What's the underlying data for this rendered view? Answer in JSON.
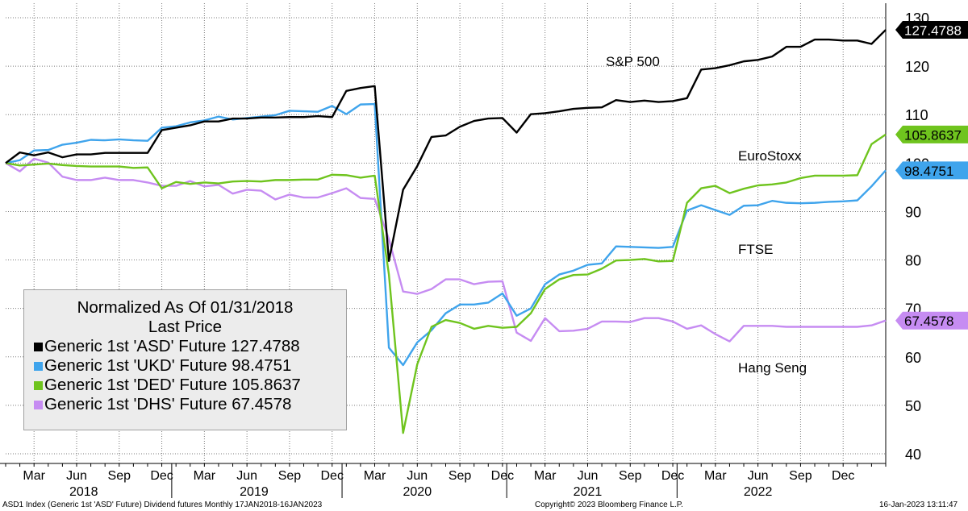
{
  "chart_data": {
    "type": "line",
    "legend": {
      "title_line1": "Normalized As Of 01/31/2018",
      "title_line2": "Last Price",
      "placement": "bottom-left"
    },
    "y_axis": {
      "min": 38,
      "max": 133,
      "ticks": [
        40,
        50,
        60,
        70,
        80,
        90,
        100,
        110,
        120,
        130
      ],
      "position": "right"
    },
    "x_axis": {
      "start": "2018-01",
      "end": "2023-01",
      "month_ticks": [
        {
          "label": "Mar",
          "t": 2
        },
        {
          "label": "Jun",
          "t": 5
        },
        {
          "label": "Sep",
          "t": 8
        },
        {
          "label": "Dec",
          "t": 11
        },
        {
          "label": "Mar",
          "t": 14
        },
        {
          "label": "Jun",
          "t": 17
        },
        {
          "label": "Sep",
          "t": 20
        },
        {
          "label": "Dec",
          "t": 23
        },
        {
          "label": "Mar",
          "t": 26
        },
        {
          "label": "Jun",
          "t": 29
        },
        {
          "label": "Sep",
          "t": 32
        },
        {
          "label": "Dec",
          "t": 35
        },
        {
          "label": "Mar",
          "t": 38
        },
        {
          "label": "Jun",
          "t": 41
        },
        {
          "label": "Sep",
          "t": 44
        },
        {
          "label": "Dec",
          "t": 47
        },
        {
          "label": "Mar",
          "t": 50
        },
        {
          "label": "Jun",
          "t": 53
        },
        {
          "label": "Sep",
          "t": 56
        },
        {
          "label": "Dec",
          "t": 59
        }
      ],
      "year_labels": [
        {
          "label": "2018",
          "t": 5.5
        },
        {
          "label": "2019",
          "t": 17.5
        },
        {
          "label": "2020",
          "t": 29.0
        },
        {
          "label": "2021",
          "t": 41.0
        },
        {
          "label": "2022",
          "t": 53.0
        }
      ],
      "year_separators": [
        11.7,
        23.7,
        35.3,
        47.3
      ]
    },
    "grid": true,
    "series": [
      {
        "legend_label": "Generic 1st 'ASD' Future 127.4788",
        "annotation": "S&P 500",
        "last_value": "127.4788",
        "color": "#000000",
        "points": [
          [
            0,
            100
          ],
          [
            1,
            102.2
          ],
          [
            2,
            101.6
          ],
          [
            3,
            102.2
          ],
          [
            4,
            101.2
          ],
          [
            5,
            101.8
          ],
          [
            6,
            101.8
          ],
          [
            7,
            102.1
          ],
          [
            8,
            102.1
          ],
          [
            9,
            102.1
          ],
          [
            10,
            102.1
          ],
          [
            11,
            106.8
          ],
          [
            12,
            107.3
          ],
          [
            13,
            107.8
          ],
          [
            14,
            108.6
          ],
          [
            15,
            108.6
          ],
          [
            16,
            109.2
          ],
          [
            17,
            109.2
          ],
          [
            18,
            109.4
          ],
          [
            19,
            109.4
          ],
          [
            20,
            109.5
          ],
          [
            21,
            109.5
          ],
          [
            22,
            109.7
          ],
          [
            23,
            109.5
          ],
          [
            24,
            114.9
          ],
          [
            25,
            115.5
          ],
          [
            26,
            115.9
          ],
          [
            27,
            79.8
          ],
          [
            28,
            94.5
          ],
          [
            29,
            99.4
          ],
          [
            30,
            105.4
          ],
          [
            31,
            105.7
          ],
          [
            32,
            107.5
          ],
          [
            33,
            108.7
          ],
          [
            34,
            109.2
          ],
          [
            35,
            109.3
          ],
          [
            36,
            106.3
          ],
          [
            37,
            110.1
          ],
          [
            38,
            110.3
          ],
          [
            39,
            110.7
          ],
          [
            40,
            111.2
          ],
          [
            41,
            111.4
          ],
          [
            42,
            111.5
          ],
          [
            43,
            113.0
          ],
          [
            44,
            112.6
          ],
          [
            45,
            112.9
          ],
          [
            46,
            112.6
          ],
          [
            47,
            112.8
          ],
          [
            48,
            113.4
          ],
          [
            49,
            119.3
          ],
          [
            50,
            119.6
          ],
          [
            51,
            120.2
          ],
          [
            52,
            121.0
          ],
          [
            53,
            121.3
          ],
          [
            54,
            122.0
          ],
          [
            55,
            124.0
          ],
          [
            56,
            124.0
          ],
          [
            57,
            125.5
          ],
          [
            58,
            125.5
          ],
          [
            59,
            125.3
          ],
          [
            60,
            125.3
          ],
          [
            61,
            124.6
          ],
          [
            62,
            127.5
          ]
        ]
      },
      {
        "legend_label": "Generic 1st 'UKD' Future 98.4751",
        "annotation": "FTSE",
        "last_value": "98.4751",
        "color": "#3fa4ec",
        "points": [
          [
            0,
            100
          ],
          [
            1,
            100.6
          ],
          [
            2,
            102.6
          ],
          [
            3,
            102.7
          ],
          [
            4,
            103.8
          ],
          [
            5,
            104.2
          ],
          [
            6,
            104.8
          ],
          [
            7,
            104.7
          ],
          [
            8,
            104.9
          ],
          [
            9,
            104.7
          ],
          [
            10,
            104.6
          ],
          [
            11,
            107.3
          ],
          [
            12,
            107.6
          ],
          [
            13,
            108.4
          ],
          [
            14,
            108.8
          ],
          [
            15,
            109.6
          ],
          [
            16,
            109.0
          ],
          [
            17,
            109.3
          ],
          [
            18,
            109.6
          ],
          [
            19,
            109.9
          ],
          [
            20,
            110.8
          ],
          [
            21,
            110.7
          ],
          [
            22,
            110.6
          ],
          [
            23,
            111.8
          ],
          [
            24,
            110.1
          ],
          [
            25,
            112.1
          ],
          [
            26,
            112.2
          ],
          [
            27,
            61.9
          ],
          [
            28,
            58.3
          ],
          [
            29,
            63.0
          ],
          [
            30,
            65.5
          ],
          [
            31,
            69.0
          ],
          [
            32,
            70.8
          ],
          [
            33,
            70.8
          ],
          [
            34,
            71.2
          ],
          [
            35,
            73.1
          ],
          [
            36,
            68.5
          ],
          [
            37,
            70.0
          ],
          [
            38,
            75.0
          ],
          [
            39,
            77.0
          ],
          [
            40,
            77.8
          ],
          [
            41,
            79.0
          ],
          [
            42,
            79.3
          ],
          [
            43,
            82.8
          ],
          [
            44,
            82.7
          ],
          [
            45,
            82.6
          ],
          [
            46,
            82.5
          ],
          [
            47,
            82.7
          ],
          [
            48,
            90.2
          ],
          [
            49,
            91.3
          ],
          [
            50,
            90.3
          ],
          [
            51,
            89.3
          ],
          [
            52,
            91.2
          ],
          [
            53,
            91.3
          ],
          [
            54,
            92.2
          ],
          [
            55,
            91.8
          ],
          [
            56,
            91.7
          ],
          [
            57,
            91.8
          ],
          [
            58,
            92.0
          ],
          [
            59,
            92.1
          ],
          [
            60,
            92.3
          ],
          [
            61,
            95.2
          ],
          [
            62,
            98.5
          ]
        ]
      },
      {
        "legend_label": "Generic 1st 'DED' Future 105.8637",
        "annotation": "EuroStoxx",
        "last_value": "105.8637",
        "color": "#6fc41e",
        "points": [
          [
            0,
            100
          ],
          [
            1,
            99.5
          ],
          [
            2,
            99.7
          ],
          [
            3,
            99.9
          ],
          [
            4,
            99.6
          ],
          [
            5,
            99.4
          ],
          [
            6,
            99.3
          ],
          [
            7,
            99.3
          ],
          [
            8,
            99.3
          ],
          [
            9,
            99.0
          ],
          [
            10,
            99.1
          ],
          [
            11,
            94.8
          ],
          [
            12,
            96.1
          ],
          [
            13,
            95.7
          ],
          [
            14,
            96.0
          ],
          [
            15,
            95.8
          ],
          [
            16,
            96.2
          ],
          [
            17,
            96.3
          ],
          [
            18,
            96.2
          ],
          [
            19,
            96.5
          ],
          [
            20,
            96.5
          ],
          [
            21,
            96.6
          ],
          [
            22,
            96.6
          ],
          [
            23,
            97.6
          ],
          [
            24,
            97.5
          ],
          [
            25,
            97.0
          ],
          [
            26,
            97.4
          ],
          [
            27,
            77.0
          ],
          [
            28,
            44.3
          ],
          [
            29,
            58.5
          ],
          [
            30,
            66.2
          ],
          [
            31,
            67.6
          ],
          [
            32,
            67.0
          ],
          [
            33,
            65.8
          ],
          [
            34,
            66.4
          ],
          [
            35,
            66.0
          ],
          [
            36,
            66.2
          ],
          [
            37,
            69.0
          ],
          [
            38,
            74.0
          ],
          [
            39,
            76.0
          ],
          [
            40,
            76.9
          ],
          [
            41,
            77.0
          ],
          [
            42,
            78.2
          ],
          [
            43,
            79.9
          ],
          [
            44,
            80.0
          ],
          [
            45,
            80.2
          ],
          [
            46,
            79.7
          ],
          [
            47,
            79.8
          ],
          [
            48,
            91.8
          ],
          [
            49,
            94.8
          ],
          [
            50,
            95.3
          ],
          [
            51,
            93.8
          ],
          [
            52,
            94.7
          ],
          [
            53,
            95.4
          ],
          [
            54,
            95.6
          ],
          [
            55,
            96.0
          ],
          [
            56,
            96.9
          ],
          [
            57,
            97.4
          ],
          [
            58,
            97.4
          ],
          [
            59,
            97.4
          ],
          [
            60,
            97.5
          ],
          [
            61,
            103.9
          ],
          [
            62,
            105.9
          ]
        ]
      },
      {
        "legend_label": "Generic 1st 'DHS' Future 67.4578",
        "annotation": "Hang Seng",
        "last_value": "67.4578",
        "color": "#c68cf2",
        "points": [
          [
            0,
            100
          ],
          [
            1,
            98.3
          ],
          [
            2,
            100.9
          ],
          [
            3,
            100.1
          ],
          [
            4,
            97.2
          ],
          [
            5,
            96.5
          ],
          [
            6,
            96.5
          ],
          [
            7,
            97.0
          ],
          [
            8,
            96.5
          ],
          [
            9,
            96.5
          ],
          [
            10,
            96.0
          ],
          [
            11,
            95.3
          ],
          [
            12,
            95.3
          ],
          [
            13,
            96.3
          ],
          [
            14,
            95.2
          ],
          [
            15,
            95.5
          ],
          [
            16,
            93.7
          ],
          [
            17,
            94.5
          ],
          [
            18,
            94.3
          ],
          [
            19,
            92.5
          ],
          [
            20,
            93.5
          ],
          [
            21,
            92.9
          ],
          [
            22,
            92.9
          ],
          [
            23,
            93.8
          ],
          [
            24,
            94.8
          ],
          [
            25,
            92.8
          ],
          [
            26,
            92.6
          ],
          [
            27,
            84.3
          ],
          [
            28,
            73.5
          ],
          [
            29,
            73.0
          ],
          [
            30,
            74.0
          ],
          [
            31,
            76.0
          ],
          [
            32,
            76.0
          ],
          [
            33,
            75.0
          ],
          [
            34,
            75.5
          ],
          [
            35,
            75.6
          ],
          [
            36,
            65.0
          ],
          [
            37,
            63.3
          ],
          [
            38,
            68.0
          ],
          [
            39,
            65.3
          ],
          [
            40,
            65.4
          ],
          [
            41,
            65.8
          ],
          [
            42,
            67.3
          ],
          [
            43,
            67.3
          ],
          [
            44,
            67.2
          ],
          [
            45,
            68.0
          ],
          [
            46,
            68.0
          ],
          [
            47,
            67.3
          ],
          [
            48,
            65.8
          ],
          [
            49,
            66.5
          ],
          [
            50,
            64.7
          ],
          [
            51,
            63.2
          ],
          [
            52,
            66.4
          ],
          [
            53,
            66.4
          ],
          [
            54,
            66.4
          ],
          [
            55,
            66.2
          ],
          [
            56,
            66.2
          ],
          [
            57,
            66.2
          ],
          [
            58,
            66.2
          ],
          [
            59,
            66.2
          ],
          [
            60,
            66.2
          ],
          [
            61,
            66.5
          ],
          [
            62,
            67.5
          ]
        ]
      }
    ]
  },
  "footer": {
    "left": "ASD1 Index (Generic 1st 'ASD' Future) Dividend futures  Monthly 17JAN2018-16JAN2023",
    "center": "Copyright© 2023 Bloomberg Finance L.P.",
    "right": "16-Jan-2023 13:11:47"
  }
}
